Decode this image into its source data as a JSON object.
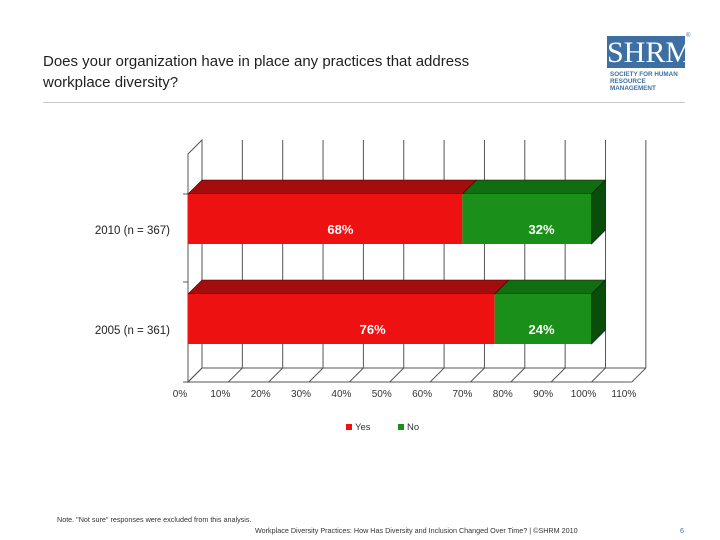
{
  "slide": {
    "title_line1": "Does your organization have in place any practices that address",
    "title_line2": "workplace diversity?",
    "note": "Note. \"Not sure\" responses were excluded from this analysis.",
    "footer": "Workplace Diversity Practices: How Has Diversity and Inclusion Changed Over Time? | ©SHRM 2010",
    "page_number": "6"
  },
  "logo": {
    "mark": "SHRM",
    "registered": "®",
    "line1": "SOCIETY FOR HUMAN",
    "line2": "RESOURCE MANAGEMENT"
  },
  "colors": {
    "yes_front": "#ee1111",
    "yes_top": "#a30d0d",
    "yes_side": "#7a0808",
    "no_front": "#1a8f1a",
    "no_top": "#0f6e0f",
    "no_side": "#0a4c0a",
    "gridline": "#555555",
    "label_text": "#ffffff"
  },
  "chart_data": {
    "type": "bar",
    "orientation": "horizontal",
    "stacked": true,
    "three_d": true,
    "categories": [
      "2010 (n = 367)",
      "2005 (n = 361)"
    ],
    "series": [
      {
        "name": "Yes",
        "values": [
          68,
          76
        ],
        "labels": [
          "68%",
          "76%"
        ]
      },
      {
        "name": "No",
        "values": [
          32,
          24
        ],
        "labels": [
          "32%",
          "24%"
        ]
      }
    ],
    "xlim": [
      0,
      110
    ],
    "x_ticks": [
      0,
      10,
      20,
      30,
      40,
      50,
      60,
      70,
      80,
      90,
      100,
      110
    ],
    "x_tick_labels": [
      "0%",
      "10%",
      "20%",
      "30%",
      "40%",
      "50%",
      "60%",
      "70%",
      "80%",
      "90%",
      "100%",
      "110%"
    ],
    "grid": true,
    "legend_position": "bottom"
  }
}
